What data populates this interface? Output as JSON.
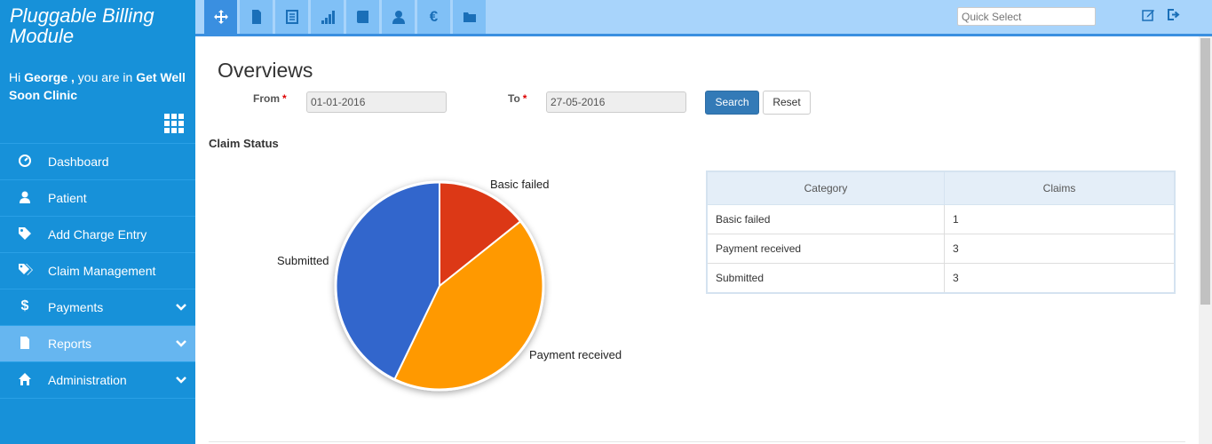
{
  "sidebar": {
    "brand_line1": "Pluggable Billing",
    "brand_line2": "Module",
    "greeting_hi": "Hi ",
    "user": "George ,",
    "greeting_mid": " you are in ",
    "clinic": "Get Well Soon Clinic",
    "items": [
      {
        "label": "Dashboard",
        "icon": "dashboard-icon"
      },
      {
        "label": "Patient",
        "icon": "user-icon"
      },
      {
        "label": "Add Charge Entry",
        "icon": "tag-icon"
      },
      {
        "label": "Claim Management",
        "icon": "tags-icon"
      },
      {
        "label": "Payments",
        "icon": "dollar-icon"
      },
      {
        "label": "Reports",
        "icon": "file-icon"
      },
      {
        "label": "Administration",
        "icon": "home-icon"
      }
    ]
  },
  "topbar": {
    "quick_select_placeholder": "Quick Select"
  },
  "main": {
    "title": "Overviews",
    "from_label": "From",
    "to_label": "To",
    "required_mark": "*",
    "from_value": "01-01-2016",
    "to_value": "27-05-2016",
    "search_label": "Search",
    "reset_label": "Reset",
    "section_title": "Claim Status"
  },
  "table": {
    "headers": [
      "Category",
      "Claims"
    ],
    "rows": [
      [
        "Basic failed",
        "1"
      ],
      [
        "Payment received",
        "3"
      ],
      [
        "Submitted",
        "3"
      ]
    ]
  },
  "chart_data": {
    "type": "pie",
    "categories": [
      "Basic failed",
      "Payment received",
      "Submitted"
    ],
    "values": [
      1,
      3,
      3
    ],
    "colors": [
      "#dc3912",
      "#ff9900",
      "#3366cc"
    ],
    "labels": [
      "Basic failed",
      "Payment received",
      "Submitted"
    ]
  }
}
